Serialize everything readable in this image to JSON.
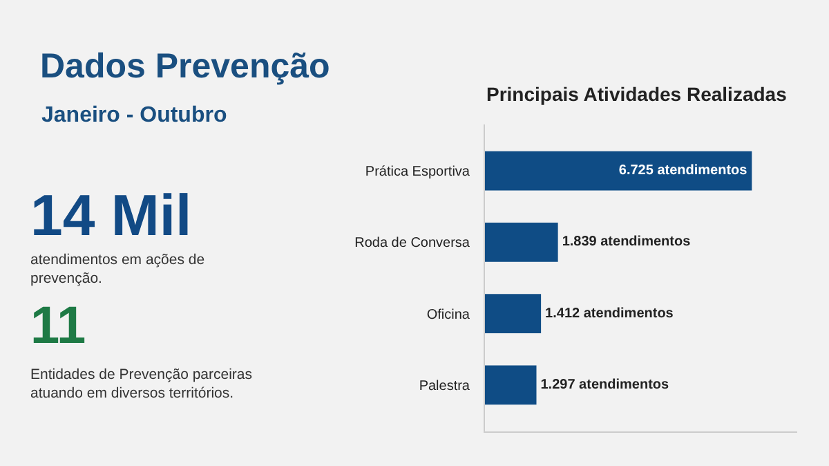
{
  "chart_data": [
    {
      "type": "other",
      "title": "Dados Prevenção",
      "subtitle": "Janeiro - Outubro",
      "annotations": [
        "14 Mil",
        "atendimentos em ações de prevenção.",
        "11",
        "Entidades de Prevenção parceiras atuando em diversos territórios."
      ]
    },
    {
      "type": "bar",
      "orientation": "horizontal",
      "title": "Principais Atividades Realizadas",
      "categories": [
        "Prática Esportiva",
        "Roda de Conversa",
        "Oficina",
        "Palestra"
      ],
      "values": [
        6725,
        1839,
        1412,
        1297
      ],
      "color": "#0f4c85",
      "value_labels": [
        "6.725 atendimentos",
        "1.839 atendimentos",
        "1.412 atendimentos",
        "1.297 atendimentos"
      ],
      "tick_labels": "y"
    }
  ]
}
